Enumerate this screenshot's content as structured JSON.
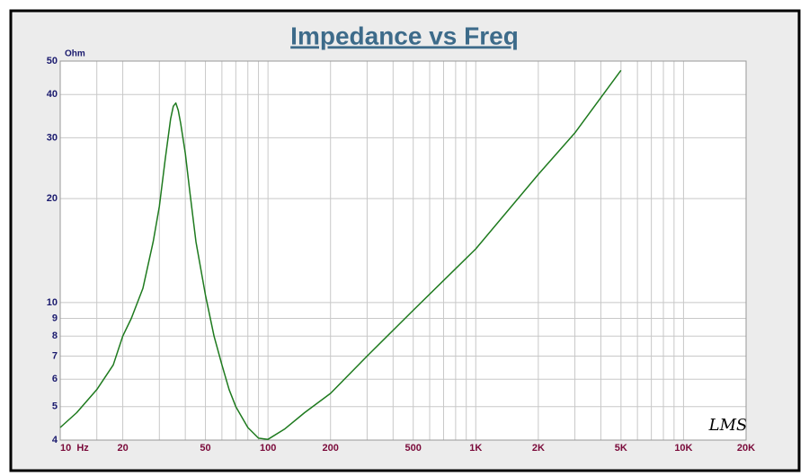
{
  "chart_data": {
    "type": "line",
    "title": "Impedance vs Freq",
    "y_label": "Ohm",
    "watermark": "LMS",
    "x": [
      10,
      12,
      15,
      18,
      20,
      22,
      25,
      28,
      30,
      32,
      34,
      35,
      36,
      37,
      38,
      40,
      42,
      45,
      50,
      55,
      60,
      65,
      70,
      80,
      90,
      100,
      120,
      150,
      200,
      300,
      500,
      1000,
      2000,
      3000,
      5000
    ],
    "values": [
      4.35,
      4.8,
      5.6,
      6.6,
      8.0,
      9.0,
      11,
      15,
      19,
      26,
      34,
      37,
      37.8,
      36,
      33,
      27,
      21,
      15,
      10.5,
      8,
      6.6,
      5.6,
      5,
      4.35,
      4.05,
      4.02,
      4.3,
      4.8,
      5.46,
      7.0,
      9.5,
      14.3,
      23.5,
      31,
      47
    ],
    "color": "#1e7a1e",
    "log_x": true,
    "log_y": true,
    "grid": true,
    "xlim": [
      10,
      20000
    ],
    "ylim": [
      4,
      50
    ],
    "xticks": [
      {
        "value": 10,
        "label": "10  Hz"
      },
      20,
      50,
      100,
      200,
      500,
      {
        "value": 1000,
        "label": "1K"
      },
      {
        "value": 2000,
        "label": "2K"
      },
      {
        "value": 5000,
        "label": "5K"
      },
      {
        "value": 10000,
        "label": "10K"
      },
      {
        "value": 20000,
        "label": "20K"
      }
    ],
    "xgrid": [
      10,
      15,
      20,
      30,
      40,
      50,
      60,
      70,
      80,
      90,
      100,
      200,
      300,
      400,
      500,
      600,
      700,
      800,
      900,
      1000,
      2000,
      3000,
      4000,
      5000,
      6000,
      7000,
      8000,
      9000,
      10000,
      20000
    ],
    "yticks": [
      4,
      5,
      6,
      7,
      8,
      9,
      10,
      20,
      30,
      40,
      50
    ]
  }
}
